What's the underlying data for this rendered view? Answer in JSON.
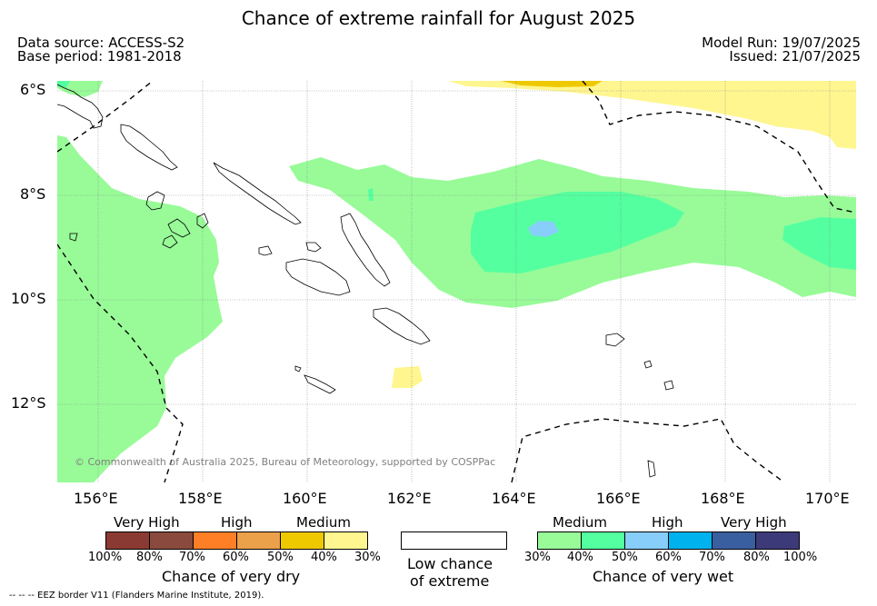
{
  "title": "Chance of extreme rainfall for August 2025",
  "header": {
    "data_source": "Data source: ACCESS-S2",
    "base_period": "Base period: 1981-2018",
    "model_run": "Model Run: 19/07/2025",
    "issued": "Issued: 21/07/2025"
  },
  "map": {
    "lat_labels": [
      "6°S",
      "8°S",
      "10°S",
      "12°S"
    ],
    "lon_labels": [
      "156°E",
      "158°E",
      "160°E",
      "162°E",
      "164°E",
      "166°E",
      "168°E",
      "170°E"
    ],
    "extent": {
      "lon": [
        155.0,
        170.3
      ],
      "lat": [
        -13.8,
        -6.1
      ]
    },
    "copyright": "© Commonwealth of Australia 2025, Bureau of Meteorology, supported by COSPPac"
  },
  "legend_dry": {
    "categories": [
      "Very High",
      "High",
      "Medium"
    ],
    "ticks": [
      "100%",
      "80%",
      "70%",
      "60%",
      "50%",
      "40%",
      "30%"
    ],
    "colors": [
      "#8b3a33",
      "#8b4a3e",
      "#ff7f27",
      "#eba04a",
      "#eec900",
      "#fff68f"
    ],
    "title": "Chance of very dry"
  },
  "legend_none": {
    "title_line1": "Low chance",
    "title_line2": "of extreme",
    "color": "#ffffff"
  },
  "legend_wet": {
    "categories": [
      "Medium",
      "High",
      "Very High"
    ],
    "ticks": [
      "30%",
      "40%",
      "50%",
      "60%",
      "70%",
      "80%",
      "100%"
    ],
    "colors": [
      "#98fb98",
      "#54ff9f",
      "#87cefa",
      "#00b2ee",
      "#3a5fa0",
      "#3d3a7a"
    ],
    "title": "Chance of very wet"
  },
  "footer": {
    "eez_note": "--  --  -- EEZ border V11 (Flanders Marine Institute, 2019)."
  }
}
